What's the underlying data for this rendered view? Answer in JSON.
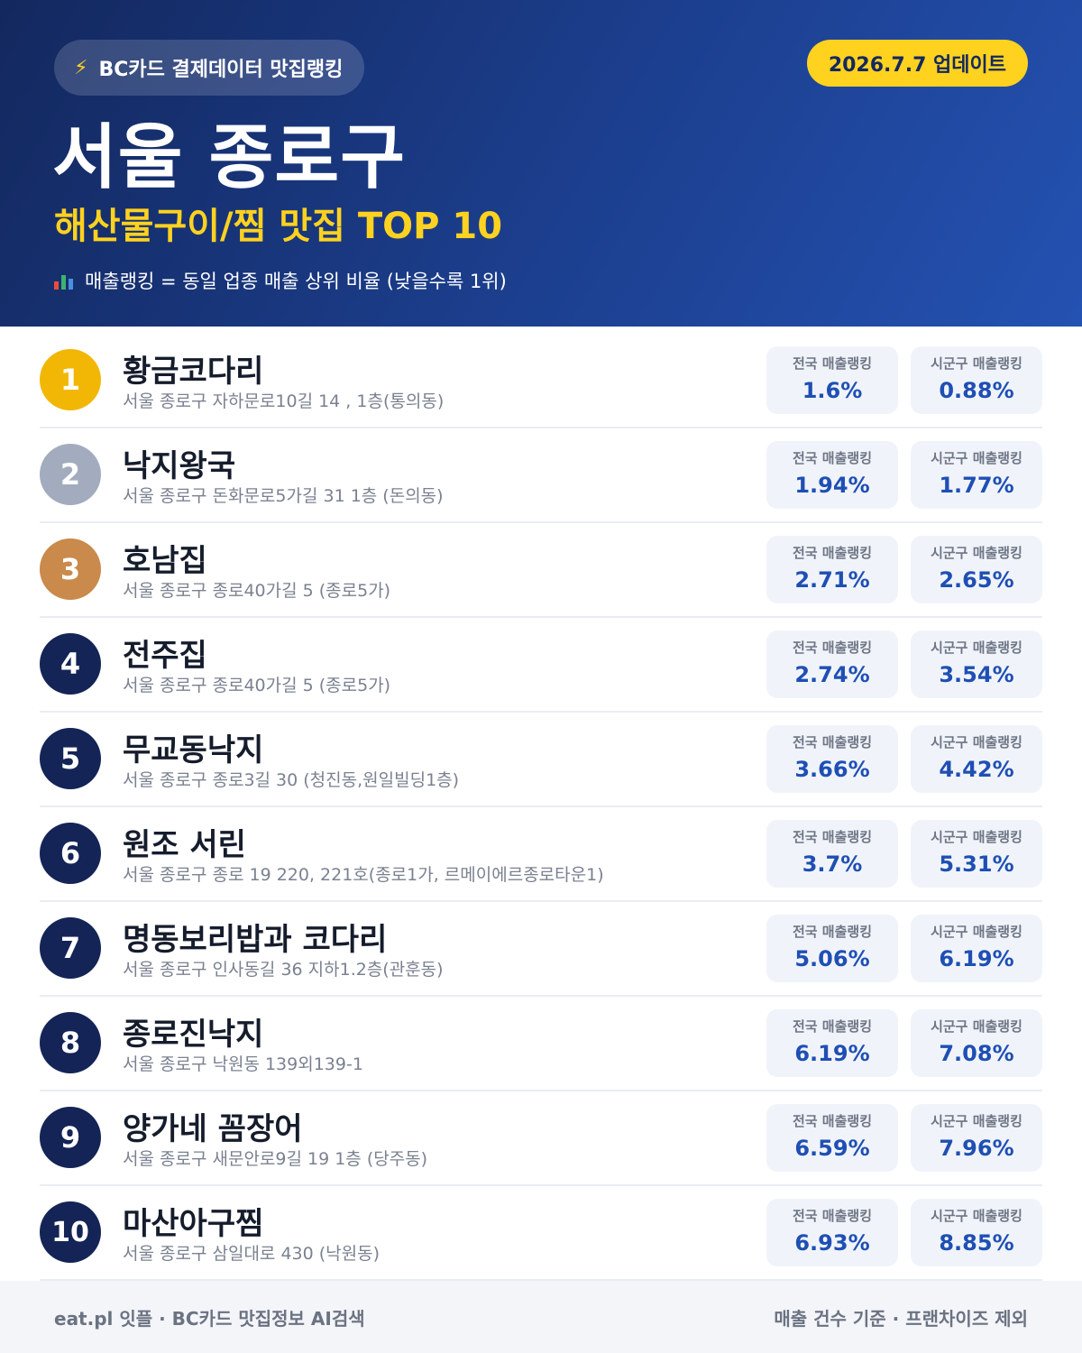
{
  "header": {
    "source_label": "BC카드 결제데이터 맛집랭킹",
    "source_icon": "lightning-icon",
    "update_label": "2026.7.7 업데이트",
    "title": "서울 종로구",
    "subtitle": "해산물구이/찜 맛집 TOP 10",
    "note": "매출랭킹 = 동일 업종 매출 상위 비율 (낮을수록 1위)",
    "note_icon": "bar-chart-icon"
  },
  "list_labels": {
    "national": "전국 매출랭킹",
    "district": "시군구 매출랭킹"
  },
  "restaurants": [
    {
      "rank": "1",
      "name": "황금코다리",
      "address": "서울 종로구 자하문로10길 14 , 1층(통의동)",
      "national": "1.6%",
      "district": "0.88%"
    },
    {
      "rank": "2",
      "name": "낙지왕국",
      "address": "서울 종로구 돈화문로5가길 31 1층 (돈의동)",
      "national": "1.94%",
      "district": "1.77%"
    },
    {
      "rank": "3",
      "name": "호남집",
      "address": "서울 종로구 종로40가길 5 (종로5가)",
      "national": "2.71%",
      "district": "2.65%"
    },
    {
      "rank": "4",
      "name": "전주집",
      "address": "서울 종로구 종로40가길 5 (종로5가)",
      "national": "2.74%",
      "district": "3.54%"
    },
    {
      "rank": "5",
      "name": "무교동낙지",
      "address": "서울 종로구 종로3길 30 (청진동,원일빌딩1층)",
      "national": "3.66%",
      "district": "4.42%"
    },
    {
      "rank": "6",
      "name": "원조 서린",
      "address": "서울 종로구 종로 19 220, 221호(종로1가, 르메이에르종로타운1)",
      "national": "3.7%",
      "district": "5.31%"
    },
    {
      "rank": "7",
      "name": "명동보리밥과 코다리",
      "address": "서울 종로구 인사동길 36 지하1.2층(관훈동)",
      "national": "5.06%",
      "district": "6.19%"
    },
    {
      "rank": "8",
      "name": "종로진낙지",
      "address": "서울 종로구 낙원동 139외139-1",
      "national": "6.19%",
      "district": "7.08%"
    },
    {
      "rank": "9",
      "name": "양가네 꼼장어",
      "address": "서울 종로구 새문안로9길 19 1층 (당주동)",
      "national": "6.59%",
      "district": "7.96%"
    },
    {
      "rank": "10",
      "name": "마산아구찜",
      "address": "서울 종로구 삼일대로 430 (낙원동)",
      "national": "6.93%",
      "district": "8.85%"
    }
  ],
  "footer": {
    "left": "eat.pl 잇플 · BC카드 맛집정보 AI검색",
    "right": "매출 건수 기준 · 프랜차이즈 제외"
  },
  "colors": {
    "header_dark": "#13285e",
    "header_light": "#2452b2",
    "accent_yellow": "#ffd21f",
    "rank_gold": "#f2b705",
    "rank_silver": "#a3acbe",
    "rank_bronze": "#c98a4c",
    "rank_default": "#142456",
    "value_blue": "#1f4fb4"
  }
}
